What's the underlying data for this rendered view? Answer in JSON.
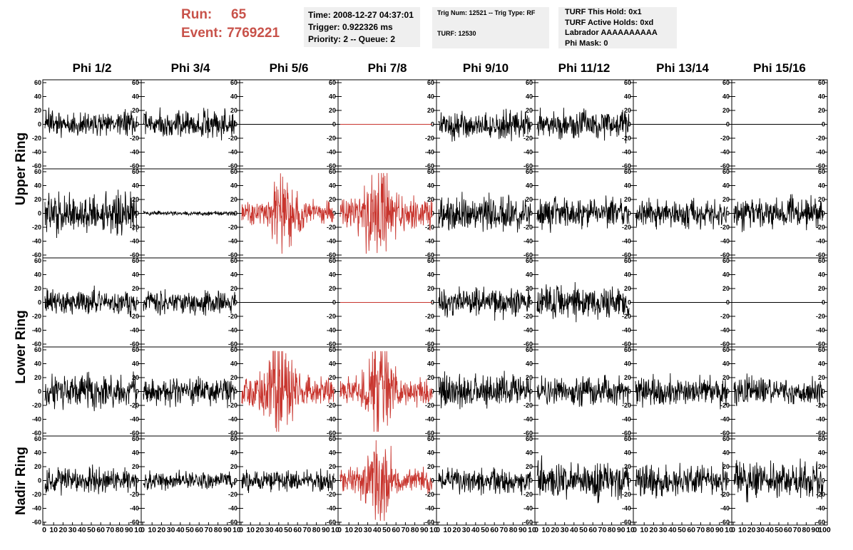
{
  "header": {
    "run_label": "Run:",
    "run_value": "65",
    "event_label": "Event:",
    "event_value": "7769221",
    "time_line": "Time: 2008-12-27 04:37:01",
    "trigger_line": "Trigger: 0.922326 ms",
    "priority_line": "Priority: 2 -- Queue: 2",
    "trig_num_line": "Trig Num: 12521 -- Trig Type: RF",
    "turf_line": "TURF: 12530",
    "turf_this_hold": "TURF This Hold: 0x1",
    "turf_active_holds": "TURF Active Holds: 0xd",
    "labrador": "Labrador AAAAAAAAAA",
    "phi_mask": "Phi Mask: 0"
  },
  "columns": [
    "Phi 1/2",
    "Phi 3/4",
    "Phi 5/6",
    "Phi 7/8",
    "Phi 9/10",
    "Phi 11/12",
    "Phi 13/14",
    "Phi 15/16"
  ],
  "rings": [
    "Upper Ring",
    "Lower Ring",
    "Nadir Ring"
  ],
  "colors": {
    "normal": "#000000",
    "triggered": "#c8352e",
    "header_red": "#c8524a",
    "box_bg": "#efefef"
  },
  "chart_data": {
    "type": "line",
    "description_of_grid": "5 rows x 8 columns of waveform panels",
    "xlim": [
      0,
      100
    ],
    "ylim": [
      -60,
      60
    ],
    "y_ticks": [
      -60,
      -40,
      -20,
      0,
      20,
      40,
      60
    ],
    "y_tick_labels": [
      "-60",
      "-40",
      "-20",
      "0",
      "20",
      "40",
      "60"
    ],
    "x_tick_labels": [
      "0",
      "10",
      "20",
      "30",
      "40",
      "50",
      "60",
      "70",
      "80",
      "90",
      "100"
    ],
    "x_tick_labels_short": [
      "0",
      "10",
      "20",
      "30",
      "40",
      "50",
      "60",
      "70",
      "80",
      "90",
      "10"
    ],
    "samples_per_trace": 260,
    "panels": [
      [
        {
          "state": "noise",
          "amp": 9,
          "seed": 11,
          "color": "normal"
        },
        {
          "state": "noise",
          "amp": 10,
          "seed": 12,
          "color": "normal"
        },
        {
          "state": "flat",
          "amp": 0,
          "seed": 13,
          "color": "normal"
        },
        {
          "state": "flat",
          "amp": 0,
          "seed": 14,
          "color": "triggered"
        },
        {
          "state": "noise",
          "amp": 10,
          "seed": 15,
          "color": "normal"
        },
        {
          "state": "noise",
          "amp": 10,
          "seed": 16,
          "color": "normal"
        },
        {
          "state": "flat",
          "amp": 0,
          "seed": 17,
          "color": "normal"
        },
        {
          "state": "flat",
          "amp": 0,
          "seed": 18,
          "color": "normal"
        }
      ],
      [
        {
          "state": "noise",
          "amp": 14,
          "seed": 21,
          "color": "normal"
        },
        {
          "state": "noise",
          "amp": 1.5,
          "seed": 22,
          "color": "normal"
        },
        {
          "state": "pulse",
          "amp": 10,
          "seed": 23,
          "color": "triggered",
          "peak": 45
        },
        {
          "state": "pulse",
          "amp": 13,
          "seed": 24,
          "color": "triggered",
          "peak": 40
        },
        {
          "state": "noise",
          "amp": 12,
          "seed": 25,
          "color": "normal"
        },
        {
          "state": "noise",
          "amp": 10,
          "seed": 26,
          "color": "normal"
        },
        {
          "state": "noise",
          "amp": 10,
          "seed": 27,
          "color": "normal"
        },
        {
          "state": "noise",
          "amp": 11,
          "seed": 28,
          "color": "normal"
        }
      ],
      [
        {
          "state": "noise",
          "amp": 9,
          "seed": 31,
          "color": "normal"
        },
        {
          "state": "noise",
          "amp": 8,
          "seed": 32,
          "color": "normal"
        },
        {
          "state": "flat",
          "amp": 0,
          "seed": 33,
          "color": "normal"
        },
        {
          "state": "flat",
          "amp": 0,
          "seed": 34,
          "color": "triggered"
        },
        {
          "state": "noise",
          "amp": 10,
          "seed": 35,
          "color": "normal"
        },
        {
          "state": "noise",
          "amp": 11,
          "seed": 36,
          "color": "normal"
        },
        {
          "state": "flat",
          "amp": 0,
          "seed": 37,
          "color": "normal"
        },
        {
          "state": "flat",
          "amp": 0,
          "seed": 38,
          "color": "normal"
        }
      ],
      [
        {
          "state": "noise",
          "amp": 11,
          "seed": 41,
          "color": "normal"
        },
        {
          "state": "noise",
          "amp": 9,
          "seed": 42,
          "color": "normal"
        },
        {
          "state": "pulse",
          "amp": 13,
          "seed": 43,
          "color": "triggered",
          "peak": 40
        },
        {
          "state": "pulse",
          "amp": 12,
          "seed": 44,
          "color": "triggered",
          "peak": 45
        },
        {
          "state": "noise",
          "amp": 11,
          "seed": 45,
          "color": "normal"
        },
        {
          "state": "noise",
          "amp": 10,
          "seed": 46,
          "color": "normal"
        },
        {
          "state": "noise",
          "amp": 10,
          "seed": 47,
          "color": "normal"
        },
        {
          "state": "noise",
          "amp": 10,
          "seed": 48,
          "color": "normal"
        }
      ],
      [
        {
          "state": "noise",
          "amp": 9,
          "seed": 51,
          "color": "normal"
        },
        {
          "state": "noise",
          "amp": 6,
          "seed": 52,
          "color": "normal"
        },
        {
          "state": "noise",
          "amp": 7,
          "seed": 53,
          "color": "normal"
        },
        {
          "state": "pulse",
          "amp": 11,
          "seed": 54,
          "color": "triggered",
          "peak": 42
        },
        {
          "state": "noise",
          "amp": 9,
          "seed": 55,
          "color": "normal"
        },
        {
          "state": "noise",
          "amp": 13,
          "seed": 56,
          "color": "normal"
        },
        {
          "state": "noise",
          "amp": 11,
          "seed": 57,
          "color": "normal"
        },
        {
          "state": "noise",
          "amp": 12,
          "seed": 58,
          "color": "normal"
        }
      ]
    ]
  }
}
